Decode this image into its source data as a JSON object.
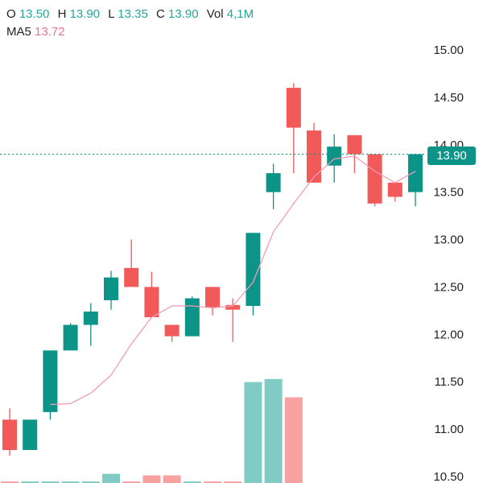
{
  "legend": {
    "open_label": "O",
    "open_value": "13.50",
    "high_label": "H",
    "high_value": "13.90",
    "low_label": "L",
    "low_value": "13.35",
    "close_label": "C",
    "close_value": "13.90",
    "vol_label": "Vol",
    "vol_value": "4,1M",
    "ma_label": "MA5",
    "ma_value": "13.72"
  },
  "current_price": "13.90",
  "colors": {
    "up": "#0d9488",
    "down": "#f25a5a",
    "up_volume": "#80cbc4",
    "down_volume": "#f7a1a1",
    "ma_line": "#f29bb7",
    "axis_text": "#222222",
    "price_line": "#0d9488"
  },
  "chart_data": {
    "type": "candlestick",
    "y_ticks": [
      "15.00",
      "14.50",
      "14.00",
      "13.50",
      "13.00",
      "12.50",
      "12.00",
      "11.50",
      "11.00",
      "10.50"
    ],
    "ylim": [
      10.45,
      15.25
    ],
    "candles": [
      {
        "open": 11.1,
        "close": 10.78,
        "high": 11.22,
        "low": 10.72
      },
      {
        "open": 10.78,
        "close": 11.1,
        "high": 11.1,
        "low": 10.78
      },
      {
        "open": 11.18,
        "close": 11.83,
        "high": 11.83,
        "low": 11.1
      },
      {
        "open": 11.83,
        "close": 12.1,
        "high": 12.12,
        "low": 11.83
      },
      {
        "open": 12.1,
        "close": 12.24,
        "high": 12.33,
        "low": 11.88
      },
      {
        "open": 12.36,
        "close": 12.6,
        "high": 12.67,
        "low": 12.26
      },
      {
        "open": 12.7,
        "close": 12.5,
        "high": 13.0,
        "low": 12.5
      },
      {
        "open": 12.5,
        "close": 12.18,
        "high": 12.66,
        "low": 12.18
      },
      {
        "open": 12.1,
        "close": 11.98,
        "high": 12.1,
        "low": 11.92
      },
      {
        "open": 11.98,
        "close": 12.38,
        "high": 12.4,
        "low": 11.98
      },
      {
        "open": 12.5,
        "close": 12.28,
        "high": 12.5,
        "low": 12.2
      },
      {
        "open": 12.31,
        "close": 12.26,
        "high": 12.38,
        "low": 11.92
      },
      {
        "open": 12.3,
        "close": 13.07,
        "high": 13.07,
        "low": 12.2
      },
      {
        "open": 13.5,
        "close": 13.7,
        "high": 13.8,
        "low": 13.32
      },
      {
        "open": 14.6,
        "close": 14.18,
        "high": 14.65,
        "low": 13.7
      },
      {
        "open": 14.15,
        "close": 13.6,
        "high": 14.23,
        "low": 13.6
      },
      {
        "open": 13.78,
        "close": 13.98,
        "high": 14.11,
        "low": 13.6
      },
      {
        "open": 14.1,
        "close": 13.9,
        "high": 14.1,
        "low": 13.7
      },
      {
        "open": 13.9,
        "close": 13.38,
        "high": 13.9,
        "low": 13.35
      },
      {
        "open": 13.6,
        "close": 13.45,
        "high": 13.6,
        "low": 13.4
      },
      {
        "open": 13.5,
        "close": 13.9,
        "high": 13.9,
        "low": 13.35
      }
    ],
    "ma5": [
      null,
      null,
      11.26,
      11.27,
      11.38,
      11.57,
      11.9,
      12.18,
      12.3,
      12.3,
      12.28,
      12.3,
      12.55,
      13.08,
      13.38,
      13.66,
      13.85,
      13.88,
      13.72,
      13.6,
      13.72
    ],
    "volume_relative": [
      0.05,
      0.05,
      0.05,
      0.05,
      0.05,
      0.3,
      0.05,
      0.25,
      0.25,
      0.05,
      0.05,
      0.05,
      3.3,
      3.4,
      2.8,
      0,
      0,
      0,
      0,
      0,
      0
    ]
  }
}
